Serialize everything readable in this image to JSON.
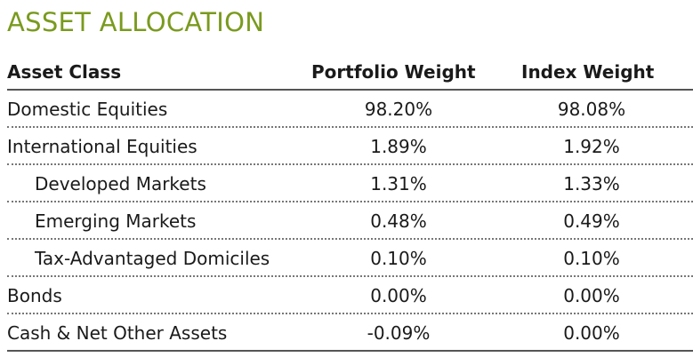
{
  "title": "ASSET ALLOCATION",
  "colors": {
    "title": "#7a9a1e",
    "text": "#1a1a1a",
    "rule": "#555555"
  },
  "table": {
    "headers": {
      "asset_class": "Asset Class",
      "portfolio_weight": "Portfolio Weight",
      "index_weight": "Index Weight"
    },
    "rows": [
      {
        "asset_class": "Domestic Equities",
        "portfolio_weight": "98.20%",
        "index_weight": "98.08%",
        "indented": false
      },
      {
        "asset_class": "International Equities",
        "portfolio_weight": "1.89%",
        "index_weight": "1.92%",
        "indented": false
      },
      {
        "asset_class": "Developed Markets",
        "portfolio_weight": "1.31%",
        "index_weight": "1.33%",
        "indented": true
      },
      {
        "asset_class": "Emerging Markets",
        "portfolio_weight": "0.48%",
        "index_weight": "0.49%",
        "indented": true
      },
      {
        "asset_class": "Tax-Advantaged Domiciles",
        "portfolio_weight": "0.10%",
        "index_weight": "0.10%",
        "indented": true
      },
      {
        "asset_class": "Bonds",
        "portfolio_weight": "0.00%",
        "index_weight": "0.00%",
        "indented": false
      },
      {
        "asset_class": "Cash & Net Other Assets",
        "portfolio_weight": "-0.09%",
        "index_weight": "0.00%",
        "indented": false
      }
    ]
  }
}
